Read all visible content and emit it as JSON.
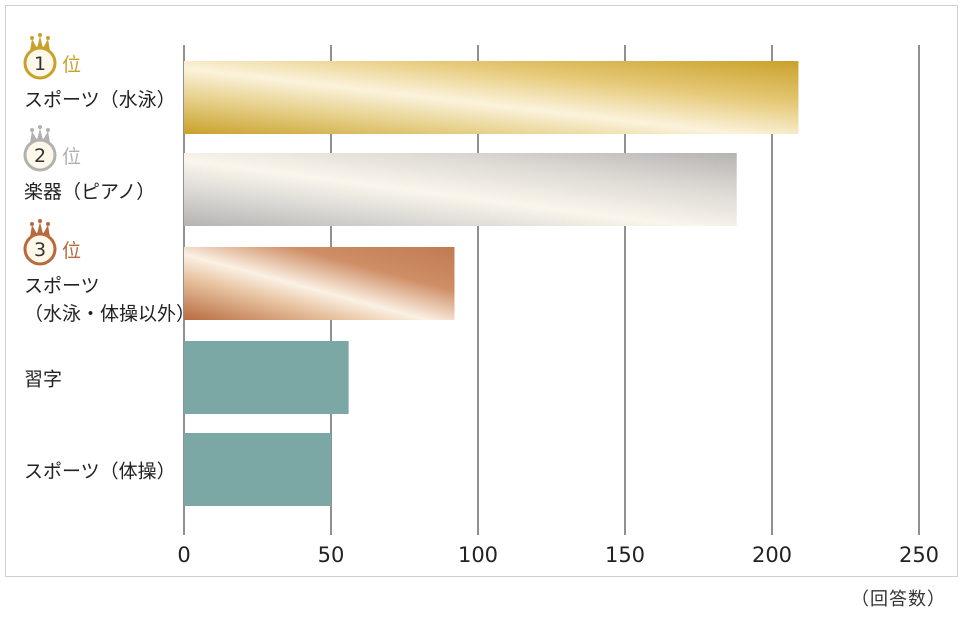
{
  "chart_data": {
    "type": "bar",
    "orientation": "horizontal",
    "unit": "（回答数）",
    "xlim": [
      0,
      250
    ],
    "ticks": [
      0,
      50,
      100,
      150,
      200,
      250
    ],
    "tick_labels": [
      "0",
      "50",
      "100",
      "150",
      "200",
      "250"
    ],
    "grid": "vertical",
    "rank_suffix": "位",
    "categories": [
      {
        "rank": "1",
        "lines": [
          "スポーツ（水泳）"
        ],
        "value": 209,
        "style": "gold"
      },
      {
        "rank": "2",
        "lines": [
          "楽器（ピアノ）"
        ],
        "value": 188,
        "style": "silver"
      },
      {
        "rank": "3",
        "lines": [
          "スポーツ",
          "（水泳・体操以外）"
        ],
        "value": 92,
        "style": "bronze"
      },
      {
        "rank": "",
        "lines": [
          "習字"
        ],
        "value": 56,
        "style": "plain"
      },
      {
        "rank": "",
        "lines": [
          "スポーツ（体操）"
        ],
        "value": 50,
        "style": "plain"
      }
    ],
    "colors": {
      "plain": "#7ba7a5",
      "gold": "#c9a12a",
      "silver": "#b5b3b1",
      "bronze": "#b86a3e",
      "gridline": "#222222"
    }
  }
}
